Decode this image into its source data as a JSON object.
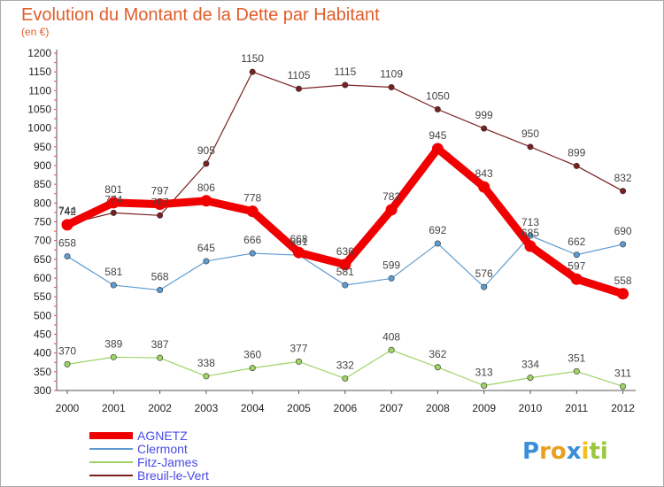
{
  "chart_data": {
    "type": "line",
    "title": "Evolution du Montant de la Dette par Habitant",
    "subtitle": "(en €)",
    "x": [
      "2000",
      "2001",
      "2002",
      "2003",
      "2004",
      "2005",
      "2006",
      "2007",
      "2008",
      "2009",
      "2010",
      "2011",
      "2012"
    ],
    "ylim": [
      300,
      1200
    ],
    "yticks": [
      300,
      350,
      400,
      450,
      500,
      550,
      600,
      650,
      700,
      750,
      800,
      850,
      900,
      950,
      1000,
      1050,
      1100,
      1150,
      1200
    ],
    "grid": false,
    "legend_position": "bottom-left",
    "series": [
      {
        "name": "Breuil-le-Vert",
        "color": "#7a2020",
        "values": [
          744,
          774,
          767,
          905,
          1150,
          1105,
          1115,
          1109,
          1050,
          999,
          950,
          899,
          832
        ]
      },
      {
        "name": "Clermont",
        "color": "#5e9bd1",
        "values": [
          658,
          581,
          568,
          645,
          666,
          661,
          581,
          599,
          692,
          576,
          713,
          662,
          690
        ]
      },
      {
        "name": "Fitz-James",
        "color": "#9ed365",
        "values": [
          370,
          389,
          387,
          338,
          360,
          377,
          332,
          408,
          362,
          313,
          334,
          351,
          311
        ]
      },
      {
        "name": "AGNETZ",
        "color": "#f00000",
        "values": [
          742,
          801,
          797,
          806,
          778,
          668,
          636,
          782,
          945,
          843,
          685,
          597,
          558
        ]
      }
    ],
    "legend": [
      "AGNETZ",
      "Clermont",
      "Fitz-James",
      "Breuil-le-Vert"
    ],
    "logo": "Proxiti"
  }
}
